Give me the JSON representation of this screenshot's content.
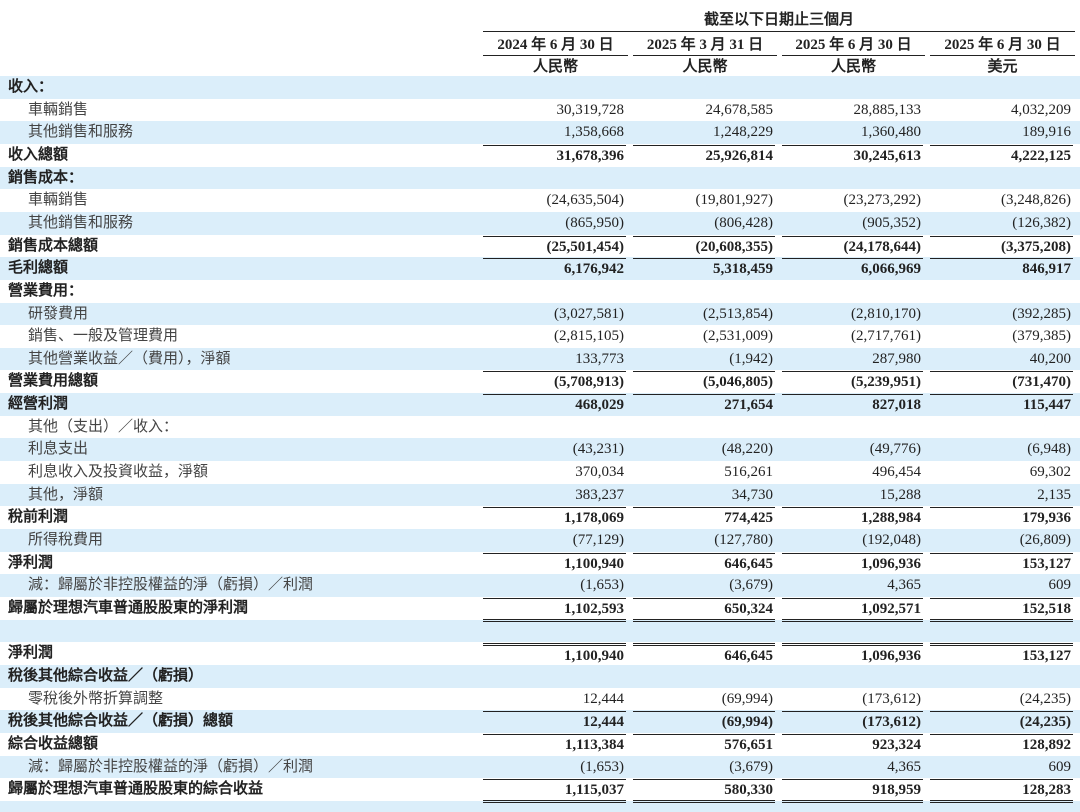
{
  "header": {
    "period": "截至以下日期止三個月",
    "columns": [
      {
        "date": "2024 年 6 月 30 日",
        "currency": "人民幣"
      },
      {
        "date": "2025 年 3 月 31 日",
        "currency": "人民幣"
      },
      {
        "date": "2025 年 6 月 30 日",
        "currency": "人民幣"
      },
      {
        "date": "2025 年 6 月 30 日",
        "currency": "美元"
      }
    ]
  },
  "rows": [
    {
      "label": "收入："
    },
    {
      "label": "車輛銷售",
      "values": [
        "30,319,728",
        "24,678,585",
        "28,885,133",
        "4,032,209"
      ]
    },
    {
      "label": "其他銷售和服務",
      "values": [
        "1,358,668",
        "1,248,229",
        "1,360,480",
        "189,916"
      ]
    },
    {
      "label": "收入總額",
      "values": [
        "31,678,396",
        "25,926,814",
        "30,245,613",
        "4,222,125"
      ]
    },
    {
      "label": "銷售成本："
    },
    {
      "label": "車輛銷售",
      "values": [
        "(24,635,504)",
        "(19,801,927)",
        "(23,273,292)",
        "(3,248,826)"
      ]
    },
    {
      "label": "其他銷售和服務",
      "values": [
        "(865,950)",
        "(806,428)",
        "(905,352)",
        "(126,382)"
      ]
    },
    {
      "label": "銷售成本總額",
      "values": [
        "(25,501,454)",
        "(20,608,355)",
        "(24,178,644)",
        "(3,375,208)"
      ]
    },
    {
      "label": "毛利總額",
      "values": [
        "6,176,942",
        "5,318,459",
        "6,066,969",
        "846,917"
      ]
    },
    {
      "label": "營業費用："
    },
    {
      "label": "研發費用",
      "values": [
        "(3,027,581)",
        "(2,513,854)",
        "(2,810,170)",
        "(392,285)"
      ]
    },
    {
      "label": "銷售、一般及管理費用",
      "values": [
        "(2,815,105)",
        "(2,531,009)",
        "(2,717,761)",
        "(379,385)"
      ]
    },
    {
      "label": "其他營業收益／（費用），淨額",
      "values": [
        "133,773",
        "(1,942)",
        "287,980",
        "40,200"
      ]
    },
    {
      "label": "營業費用總額",
      "values": [
        "(5,708,913)",
        "(5,046,805)",
        "(5,239,951)",
        "(731,470)"
      ]
    },
    {
      "label": "經營利潤",
      "values": [
        "468,029",
        "271,654",
        "827,018",
        "115,447"
      ]
    },
    {
      "label": "其他（支出）／收入："
    },
    {
      "label": "利息支出",
      "values": [
        "(43,231)",
        "(48,220)",
        "(49,776)",
        "(6,948)"
      ]
    },
    {
      "label": "利息收入及投資收益，淨額",
      "values": [
        "370,034",
        "516,261",
        "496,454",
        "69,302"
      ]
    },
    {
      "label": "其他，淨額",
      "values": [
        "383,237",
        "34,730",
        "15,288",
        "2,135"
      ]
    },
    {
      "label": "稅前利潤",
      "values": [
        "1,178,069",
        "774,425",
        "1,288,984",
        "179,936"
      ]
    },
    {
      "label": "所得稅費用",
      "values": [
        "(77,129)",
        "(127,780)",
        "(192,048)",
        "(26,809)"
      ]
    },
    {
      "label": "淨利潤",
      "values": [
        "1,100,940",
        "646,645",
        "1,096,936",
        "153,127"
      ]
    },
    {
      "label": "減：歸屬於非控股權益的淨（虧損）／利潤",
      "values": [
        "(1,653)",
        "(3,679)",
        "4,365",
        "609"
      ]
    },
    {
      "label": "歸屬於理想汽車普通股股東的淨利潤",
      "values": [
        "1,102,593",
        "650,324",
        "1,092,571",
        "152,518"
      ]
    },
    {
      "label": "淨利潤",
      "values": [
        "1,100,940",
        "646,645",
        "1,096,936",
        "153,127"
      ]
    },
    {
      "label": "稅後其他綜合收益／（虧損）"
    },
    {
      "label": "零稅後外幣折算調整",
      "values": [
        "12,444",
        "(69,994)",
        "(173,612)",
        "(24,235)"
      ]
    },
    {
      "label": "稅後其他綜合收益／（虧損）總額",
      "values": [
        "12,444",
        "(69,994)",
        "(173,612)",
        "(24,235)"
      ]
    },
    {
      "label": "綜合收益總額",
      "values": [
        "1,113,384",
        "576,651",
        "923,324",
        "128,892"
      ]
    },
    {
      "label": "減：歸屬於非控股權益的淨（虧損）／利潤",
      "values": [
        "(1,653)",
        "(3,679)",
        "4,365",
        "609"
      ]
    },
    {
      "label": "歸屬於理想汽車普通股股東的綜合收益",
      "values": [
        "1,115,037",
        "580,330",
        "918,959",
        "128,283"
      ]
    }
  ]
}
